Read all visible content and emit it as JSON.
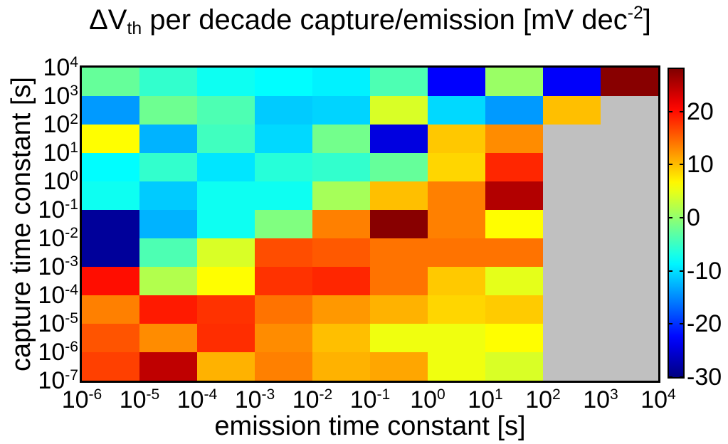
{
  "chart_data": {
    "type": "heatmap",
    "colormap": "jet",
    "caxis": [
      -30,
      28
    ],
    "nan_color": "#c0c0c0",
    "background_color": "#ffffff",
    "axis_color": "#000000",
    "title_parts": {
      "prefix": "ΔV",
      "subscript": "th",
      "middle": " per decade capture/emission [mV dec",
      "superscript": "-2",
      "suffix": "]"
    },
    "x_axis": {
      "label": "emission time constant [s]",
      "scale": "log10",
      "tick_exponents": [
        -6,
        -5,
        -4,
        -3,
        -2,
        -1,
        0,
        1,
        2,
        3,
        4
      ],
      "range_exponents": [
        -6,
        4
      ]
    },
    "y_axis": {
      "label": "capture time constant [s]",
      "scale": "log10",
      "tick_exponents": [
        4,
        3,
        2,
        1,
        0,
        -1,
        -2,
        -3,
        -4,
        -5,
        -6,
        -7
      ],
      "range_exponents": [
        -7,
        4
      ]
    },
    "colorbar": {
      "position": "right",
      "ticks": [
        20,
        10,
        0,
        -10,
        -20,
        -30
      ]
    },
    "values_note": "rows top-to-bottom follow y tick order (capture 10^4 down to 10^-7); null = no data (grey)",
    "values": [
      [
        -2.5,
        -5.4,
        -7.5,
        -8.3,
        -9.0,
        -3.9,
        -22.8,
        0.5,
        -23.0,
        27.5
      ],
      [
        -14.0,
        -2.0,
        -3.9,
        -11.2,
        -10.7,
        4.1,
        -10.4,
        -14.0,
        9.9,
        null
      ],
      [
        6.3,
        -12.6,
        -4.6,
        -10.4,
        -1.7,
        -24.5,
        9.4,
        12.8,
        null,
        null
      ],
      [
        -8.3,
        -5.4,
        -9.7,
        -6.1,
        -5.4,
        -2.5,
        8.6,
        18.6,
        null,
        null
      ],
      [
        -7.5,
        -11.2,
        -7.5,
        -7.5,
        1.2,
        9.9,
        13.5,
        25.1,
        null,
        null
      ],
      [
        -28.5,
        -12.6,
        -7.5,
        -1.0,
        13.5,
        27.5,
        13.5,
        6.3,
        null,
        null
      ],
      [
        -28.5,
        -3.9,
        4.1,
        16.4,
        15.7,
        14.2,
        14.2,
        14.2,
        null,
        null
      ],
      [
        20.0,
        1.9,
        6.3,
        17.9,
        18.6,
        14.2,
        9.3,
        4.8,
        null,
        null
      ],
      [
        13.5,
        19.3,
        17.9,
        14.2,
        12.1,
        10.6,
        8.6,
        9.2,
        null,
        null
      ],
      [
        16.0,
        12.8,
        18.2,
        12.8,
        9.9,
        5.4,
        5.4,
        6.3,
        null,
        null
      ],
      [
        17.1,
        24.4,
        10.6,
        13.5,
        10.6,
        11.3,
        5.4,
        4.1,
        null,
        null
      ]
    ]
  }
}
